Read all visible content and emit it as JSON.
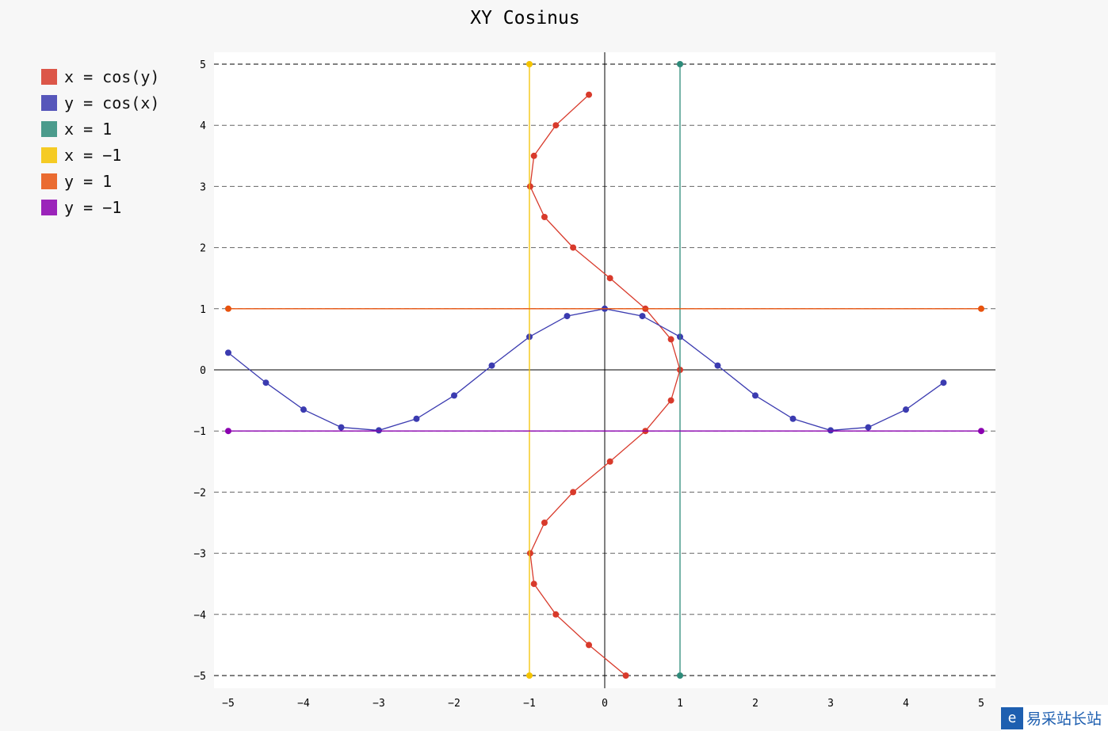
{
  "chart_data": {
    "type": "line",
    "title": "XY Cosinus",
    "xlim": [
      -5,
      5
    ],
    "ylim": [
      -5,
      5
    ],
    "x_ticks": [
      "-5",
      "-4",
      "-3",
      "-2",
      "-1",
      "0",
      "1",
      "2",
      "3",
      "4",
      "5"
    ],
    "y_ticks": [
      "-5",
      "-4",
      "-3",
      "-2",
      "-1",
      "0",
      "1",
      "2",
      "3",
      "4",
      "5"
    ],
    "grid": "horizontal dashed",
    "legend_position": "left",
    "series": [
      {
        "name": "x = cos(y)",
        "color": "#d83a2b",
        "x": [
          0.28,
          -0.21,
          -0.65,
          -0.94,
          -0.99,
          -0.8,
          -0.42,
          0.07,
          0.54,
          0.88,
          1,
          0.88,
          0.54,
          0.07,
          -0.42,
          -0.8,
          -0.99,
          -0.94,
          -0.65,
          -0.21
        ],
        "y": [
          -5,
          -4.5,
          -4,
          -3.5,
          -3,
          -2.5,
          -2,
          -1.5,
          -1,
          -0.5,
          0,
          0.5,
          1,
          1.5,
          2,
          2.5,
          3,
          3.5,
          4,
          4.5
        ]
      },
      {
        "name": "y = cos(x)",
        "color": "#3b3bb0",
        "x": [
          -5,
          -4.5,
          -4,
          -3.5,
          -3,
          -2.5,
          -2,
          -1.5,
          -1,
          -0.5,
          0,
          0.5,
          1,
          1.5,
          2,
          2.5,
          3,
          3.5,
          4,
          4.5
        ],
        "y": [
          0.28,
          -0.21,
          -0.65,
          -0.94,
          -0.99,
          -0.8,
          -0.42,
          0.07,
          0.54,
          0.88,
          1,
          0.88,
          0.54,
          0.07,
          -0.42,
          -0.8,
          -0.99,
          -0.94,
          -0.65,
          -0.21
        ]
      },
      {
        "name": "x = 1",
        "color": "#2e8b7a",
        "x": [
          1,
          1
        ],
        "y": [
          -5,
          5
        ]
      },
      {
        "name": "x = −1",
        "color": "#f5c400",
        "x": [
          -1,
          -1
        ],
        "y": [
          -5,
          5
        ]
      },
      {
        "name": "y = 1",
        "color": "#e8530e",
        "x": [
          -5,
          5
        ],
        "y": [
          1,
          1
        ]
      },
      {
        "name": "y = −1",
        "color": "#8b00b0",
        "x": [
          -5,
          5
        ],
        "y": [
          -1,
          -1
        ]
      }
    ]
  },
  "watermark": {
    "icon": "e-logo-icon",
    "text": "易采站长站"
  }
}
